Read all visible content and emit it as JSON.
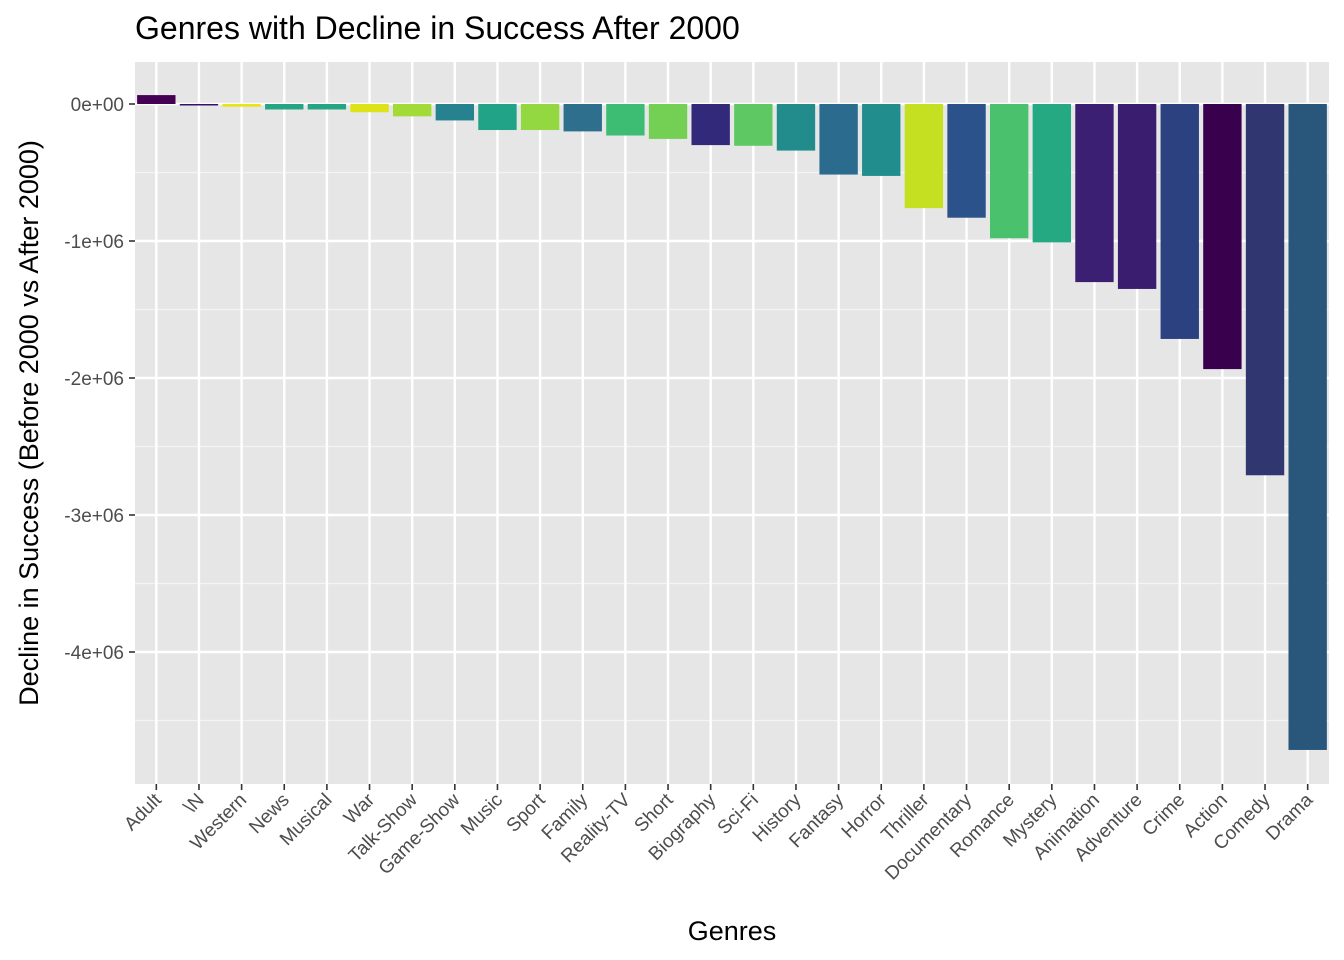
{
  "chart_data": {
    "type": "bar",
    "title": "Genres with Decline in Success After 2000",
    "xlabel": "Genres",
    "ylabel": "Decline in Success (Before 2000 vs After 2000)",
    "ylim": [
      -4900000,
      300000
    ],
    "yticks": [
      0,
      -1000000,
      -2000000,
      -3000000,
      -4000000
    ],
    "ytick_labels": [
      "0e+00",
      "-1e+06",
      "-2e+06",
      "-3e+06",
      "-4e+06"
    ],
    "grid": true,
    "legend": "none",
    "categories": [
      "Adult",
      "\\N",
      "Western",
      "News",
      "Musical",
      "War",
      "Talk-Show",
      "Game-Show",
      "Music",
      "Sport",
      "Family",
      "Reality-TV",
      "Short",
      "Biography",
      "Sci-Fi",
      "History",
      "Fantasy",
      "Horror",
      "Thriller",
      "Documentary",
      "Romance",
      "Mystery",
      "Animation",
      "Adventure",
      "Crime",
      "Action",
      "Comedy",
      "Drama"
    ],
    "values": [
      65000,
      -8000,
      -20000,
      -40000,
      -40000,
      -60000,
      -90000,
      -120000,
      -190000,
      -190000,
      -200000,
      -230000,
      -255000,
      -300000,
      -305000,
      -340000,
      -515000,
      -525000,
      -760000,
      -830000,
      -980000,
      -1010000,
      -1300000,
      -1350000,
      -1715000,
      -1935000,
      -2710000,
      -4715000
    ],
    "colors": [
      "#440154",
      "#3b0f70",
      "#e8e419",
      "#25a584",
      "#25a584",
      "#dde318",
      "#a2da37",
      "#26828e",
      "#20a386",
      "#93d741",
      "#2e6f8e",
      "#3dbc74",
      "#74d055",
      "#33297a",
      "#5ec962",
      "#228c8d",
      "#2b6c8e",
      "#218d8c",
      "#c5e021",
      "#2b528b",
      "#4ac16d",
      "#24a982",
      "#3a1f72",
      "#3b1d70",
      "#2c4180",
      "#38004d",
      "#303670",
      "#29577c"
    ]
  }
}
